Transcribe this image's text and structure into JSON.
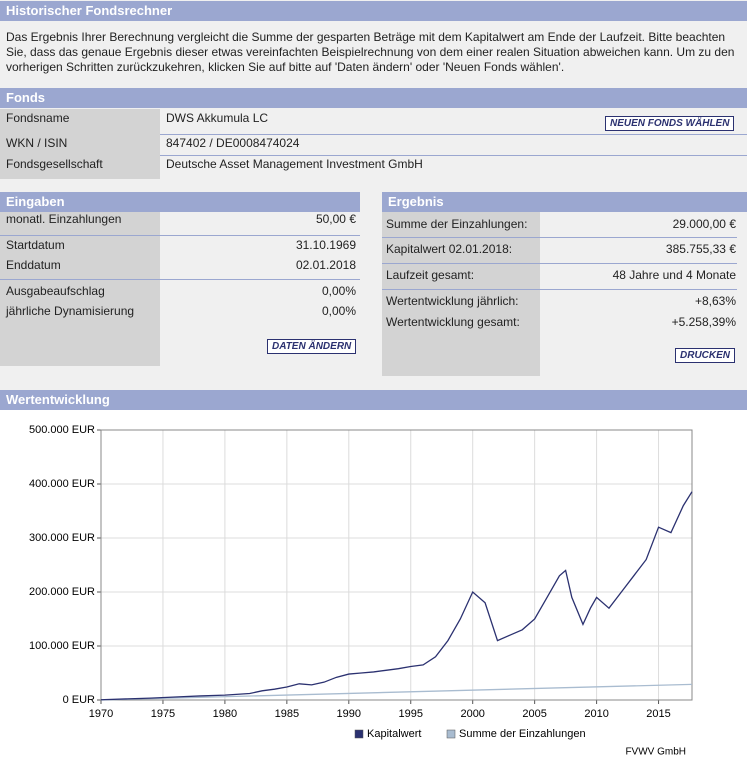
{
  "header": {
    "title": "Historischer Fondsrechner",
    "intro": "Das Ergebnis Ihrer Berechnung vergleicht die Summe der gesparten Beträge mit dem Kapitalwert am Ende der Laufzeit. Bitte beachten Sie, dass das genaue Ergebnis dieser etwas vereinfachten Beispielrechnung von dem einer realen Situation abweichen kann. Um zu den vorherigen Schritten zurückzukehren, klicken Sie auf bitte auf 'Daten ändern' oder 'Neuen Fonds wählen'."
  },
  "fonds": {
    "title": "Fonds",
    "button": "NEUEN FONDS WÄHLEN",
    "rows": [
      [
        "Fondsname",
        "DWS Akkumula LC"
      ],
      [
        "WKN / ISIN",
        "847402 / DE0008474024"
      ],
      [
        "Fondsgesellschaft",
        "Deutsche Asset Management Investment GmbH"
      ]
    ]
  },
  "eingaben": {
    "title": "Eingaben",
    "button": "DATEN ÄNDERN",
    "rows": [
      [
        "monatl. Einzahlungen",
        "50,00 €"
      ],
      [
        "Startdatum",
        "31.10.1969"
      ],
      [
        "Enddatum",
        "02.01.2018"
      ],
      [
        "Ausgabeaufschlag",
        "0,00%"
      ],
      [
        "jährliche Dynamisierung",
        "0,00%"
      ]
    ]
  },
  "ergebnis": {
    "title": "Ergebnis",
    "button": "DRUCKEN",
    "rows": [
      [
        "Summe der Einzahlungen:",
        "29.000,00 €"
      ],
      [
        "Kapitalwert 02.01.2018:",
        "385.755,33 €"
      ],
      [
        "Laufzeit gesamt:",
        "48 Jahre und 4 Monate"
      ],
      [
        "Wertentwicklung jährlich:",
        "+8,63%"
      ],
      [
        "Wertentwicklung gesamt:",
        "+5.258,39%"
      ]
    ]
  },
  "chart_data": {
    "type": "line",
    "title": "Wertentwicklung",
    "source": "FVWV GmbH",
    "xlim": [
      1970,
      2017.7
    ],
    "xticks": [
      1970,
      1975,
      1980,
      1985,
      1990,
      1995,
      2000,
      2005,
      2010,
      2015
    ],
    "ylim": [
      0,
      500000
    ],
    "yticks": [
      {
        "value": 0,
        "label": "0 EUR"
      },
      {
        "value": 100000,
        "label": "100.000 EUR"
      },
      {
        "value": 200000,
        "label": "200.000 EUR"
      },
      {
        "value": 300000,
        "label": "300.000 EUR"
      },
      {
        "value": 400000,
        "label": "400.000 EUR"
      },
      {
        "value": 500000,
        "label": "500.000 EUR"
      }
    ],
    "grid": true,
    "series": [
      {
        "name": "Kapitalwert",
        "color": "#2b3170",
        "x": [
          1970,
          1972,
          1974,
          1976,
          1978,
          1980,
          1982,
          1983,
          1984,
          1985,
          1986,
          1987,
          1988,
          1989,
          1990,
          1991,
          1992,
          1993,
          1994,
          1995,
          1996,
          1997,
          1998,
          1999,
          2000,
          2001,
          2002,
          2003,
          2004,
          2005,
          2006,
          2007,
          2007.5,
          2008,
          2008.9,
          2009.5,
          2010,
          2011,
          2012,
          2013,
          2014,
          2015,
          2016,
          2017,
          2017.7
        ],
        "values": [
          500,
          2000,
          3500,
          5500,
          7500,
          9000,
          12000,
          17000,
          20000,
          24000,
          30000,
          28000,
          33000,
          42000,
          48000,
          50000,
          52000,
          55000,
          58000,
          62000,
          65000,
          80000,
          110000,
          150000,
          200000,
          180000,
          110000,
          120000,
          130000,
          150000,
          190000,
          230000,
          240000,
          190000,
          140000,
          170000,
          190000,
          170000,
          200000,
          230000,
          260000,
          320000,
          310000,
          360000,
          385755
        ]
      },
      {
        "name": "Summe der Einzahlungen",
        "color": "#a9bcd0",
        "x": [
          1970,
          2017.7
        ],
        "values": [
          50,
          29000
        ]
      }
    ]
  }
}
